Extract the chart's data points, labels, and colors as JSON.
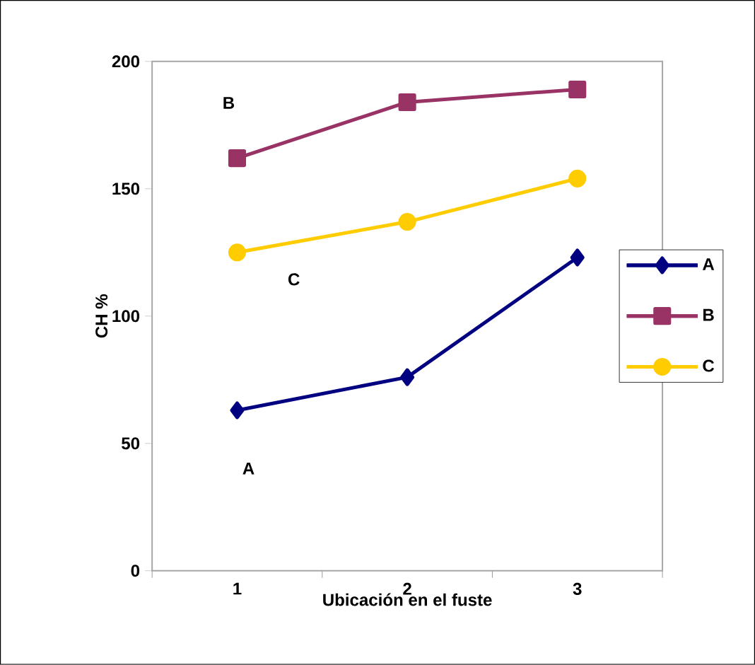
{
  "chart_data": {
    "type": "line",
    "xlabel": "Ubicación en el fuste",
    "ylabel": "CH %",
    "categories": [
      "1",
      "2",
      "3"
    ],
    "ylim": [
      0,
      200
    ],
    "yticks": [
      0,
      50,
      100,
      150,
      200
    ],
    "legend": "right",
    "grid": false,
    "series": [
      {
        "name": "A",
        "color": "#000080",
        "marker": "diamond",
        "values": [
          63,
          76,
          123
        ]
      },
      {
        "name": "B",
        "color": "#993366",
        "marker": "square",
        "values": [
          162,
          184,
          189
        ]
      },
      {
        "name": "C",
        "color": "#ffcc00",
        "marker": "circle",
        "values": [
          125,
          137,
          154
        ]
      }
    ],
    "annotations": [
      "A",
      "B",
      "C"
    ]
  }
}
